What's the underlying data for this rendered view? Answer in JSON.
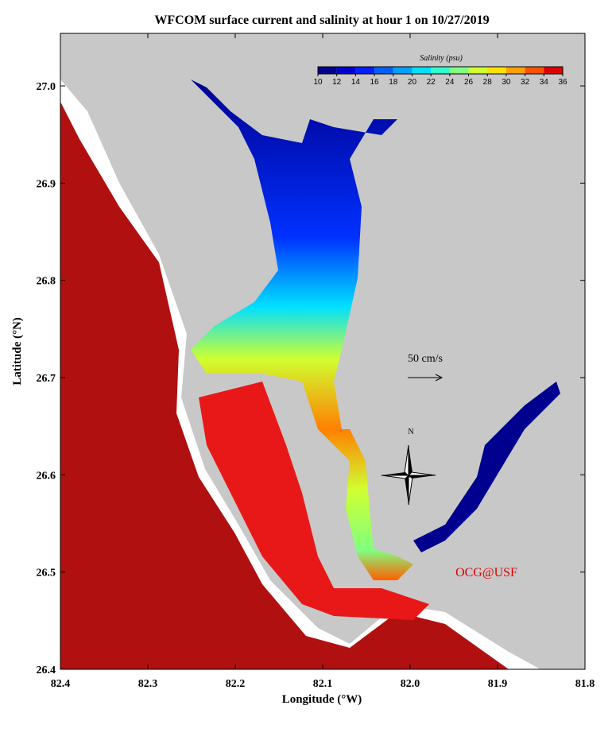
{
  "map_data": {
    "title": "WFCOM surface current and salinity at hour 1 on 10/27/2019",
    "x_label": "Longitude (°W)",
    "y_label": "Latitude (°N)",
    "xlim": [
      82.4,
      81.8
    ],
    "ylim": [
      26.4,
      27.054
    ],
    "xticks": [
      82.4,
      82.3,
      82.2,
      82.1,
      {
        "value": 82,
        "label": "82.0"
      },
      81.9,
      81.8
    ],
    "yticks": [
      26.4,
      26.5,
      26.6,
      26.7,
      26.8,
      26.9,
      {
        "value": 27,
        "label": "27.0"
      }
    ],
    "colorbar": {
      "title": "Salinity (psu)",
      "ticks": [
        10,
        12,
        14,
        16,
        18,
        20,
        22,
        24,
        26,
        28,
        30,
        32,
        34,
        36
      ],
      "colors": [
        "#00008f",
        "#0000d0",
        "#0020ff",
        "#0060ff",
        "#00a0ff",
        "#00e0ff",
        "#30ffd0",
        "#80ff80",
        "#d0ff30",
        "#ffe000",
        "#ffa000",
        "#ff5000",
        "#e00000"
      ]
    },
    "scale_label": "50 cm/s",
    "north_label": "N",
    "credit": "OCG@USF"
  }
}
